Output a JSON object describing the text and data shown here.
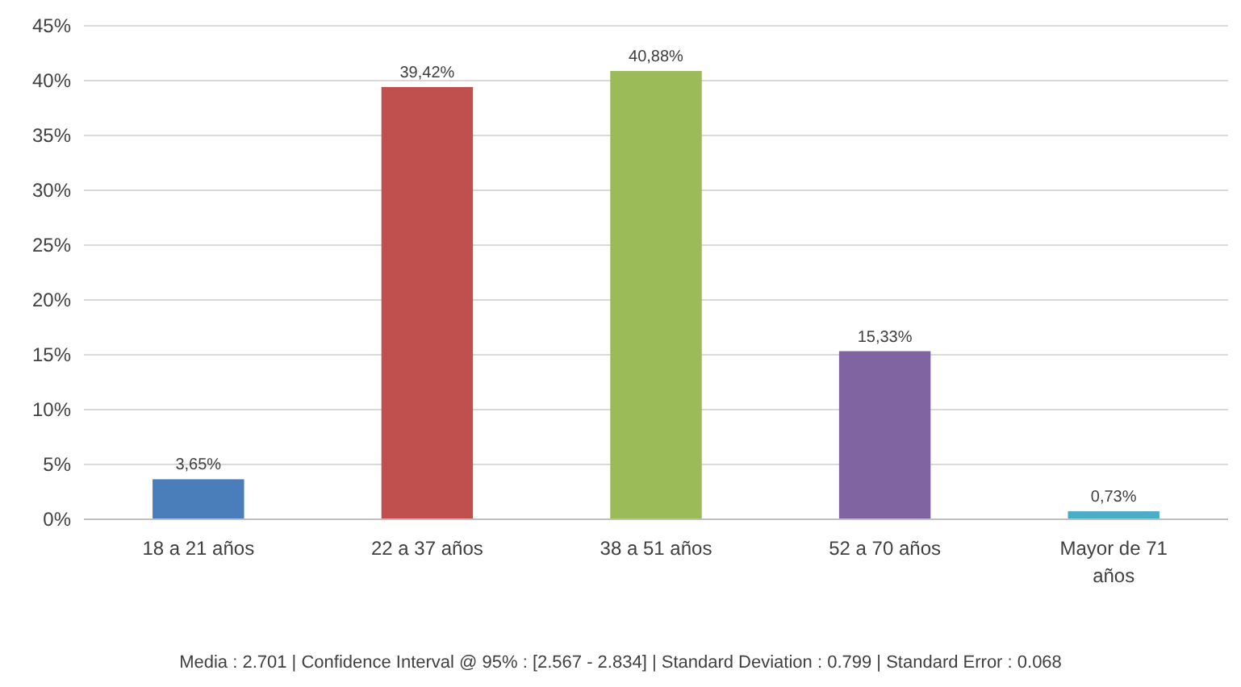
{
  "chart_data": {
    "type": "bar",
    "categories": [
      "18 a 21 años",
      "22 a 37 años",
      "38 a 51 años",
      "52 a 70 años",
      "Mayor de 71 años"
    ],
    "values": [
      3.65,
      39.42,
      40.88,
      15.33,
      0.73
    ],
    "colors": [
      "#4a7ebb",
      "#c0504d",
      "#9bbb59",
      "#8064a2",
      "#4bacc6"
    ],
    "value_labels": [
      "3,65%",
      "39,42%",
      "40,88%",
      "15,33%",
      "0,73%"
    ],
    "ylim": [
      0,
      45
    ],
    "yticks": [
      {
        "value": 0,
        "label": "0%"
      },
      {
        "value": 5,
        "label": "5%"
      },
      {
        "value": 10,
        "label": "10%"
      },
      {
        "value": 15,
        "label": "15%"
      },
      {
        "value": 20,
        "label": "20%"
      },
      {
        "value": 25,
        "label": "25%"
      },
      {
        "value": 30,
        "label": "30%"
      },
      {
        "value": 35,
        "label": "35%"
      },
      {
        "value": 40,
        "label": "40%"
      },
      {
        "value": 45,
        "label": "45%"
      }
    ],
    "grid": "y",
    "annotations": [
      "Media : 2.701  |  Confidence Interval @ 95% : [2.567 - 2.834]  |  Standard Deviation : 0.799  |  Standard Error : 0.068"
    ]
  }
}
